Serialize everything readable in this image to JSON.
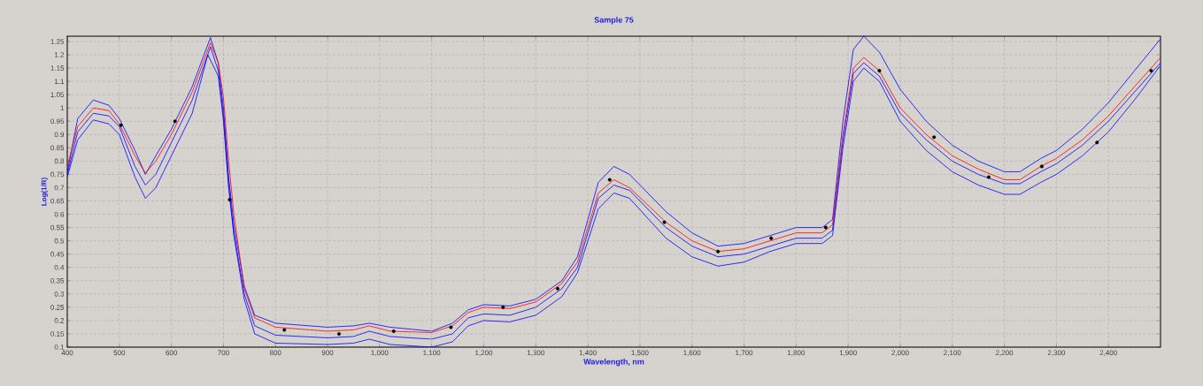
{
  "chart_data": {
    "type": "line",
    "title": "Sample 75",
    "xlabel": "Wavelength, nm",
    "ylabel": "Log(1/R)",
    "xlim": [
      400,
      2500
    ],
    "ylim": [
      0.1,
      1.27
    ],
    "xticks": [
      400,
      500,
      600,
      700,
      800,
      900,
      {
        "value": 1000,
        "label": "1,000"
      },
      {
        "value": 1100,
        "label": "1,100"
      },
      {
        "value": 1200,
        "label": "1,200"
      },
      {
        "value": 1300,
        "label": "1,300"
      },
      {
        "value": 1400,
        "label": "1,400"
      },
      {
        "value": 1500,
        "label": "1,500"
      },
      {
        "value": 1600,
        "label": "1,600"
      },
      {
        "value": 1700,
        "label": "1,700"
      },
      {
        "value": 1800,
        "label": "1,800"
      },
      {
        "value": 1900,
        "label": "1,900"
      },
      {
        "value": 2000,
        "label": "2,000"
      },
      {
        "value": 2100,
        "label": "2,100"
      },
      {
        "value": 2200,
        "label": "2,200"
      },
      {
        "value": 2300,
        "label": "2,300"
      },
      {
        "value": 2400,
        "label": "2,400"
      }
    ],
    "yticks": [
      0.1,
      0.15,
      0.2,
      0.25,
      0.3,
      0.35,
      0.4,
      0.45,
      0.5,
      0.55,
      0.6,
      0.65,
      0.7,
      0.75,
      0.8,
      0.85,
      0.9,
      0.95,
      1,
      1.05,
      1.1,
      1.15,
      1.2,
      1.25
    ],
    "grid": true,
    "marker": "none",
    "series": [
      {
        "color": "#0000ff",
        "x": [
          400,
          420,
          450,
          480,
          500,
          530,
          550,
          570,
          600,
          640,
          675,
          690,
          700,
          710,
          720,
          740,
          760,
          800,
          900,
          950,
          980,
          1020,
          1100,
          1140,
          1170,
          1200,
          1250,
          1300,
          1350,
          1380,
          1400,
          1420,
          1450,
          1480,
          1550,
          1600,
          1650,
          1700,
          1750,
          1800,
          1850,
          1870,
          1890,
          1910,
          1930,
          1960,
          2000,
          2050,
          2100,
          2150,
          2200,
          2230,
          2270,
          2300,
          2350,
          2400,
          2450,
          2500
        ],
        "values": [
          0.76,
          0.96,
          1.03,
          1.01,
          0.96,
          0.84,
          0.75,
          0.82,
          0.92,
          1.08,
          1.265,
          1.17,
          1.0,
          0.74,
          0.56,
          0.33,
          0.22,
          0.19,
          0.175,
          0.18,
          0.19,
          0.175,
          0.16,
          0.19,
          0.24,
          0.26,
          0.255,
          0.28,
          0.35,
          0.44,
          0.58,
          0.72,
          0.78,
          0.75,
          0.61,
          0.53,
          0.48,
          0.49,
          0.52,
          0.55,
          0.55,
          0.58,
          0.95,
          1.22,
          1.27,
          1.21,
          1.07,
          0.95,
          0.86,
          0.8,
          0.76,
          0.76,
          0.81,
          0.84,
          0.92,
          1.02,
          1.14,
          1.26
        ]
      },
      {
        "color": "#0000ff",
        "x": [
          400,
          420,
          450,
          480,
          500,
          530,
          550,
          570,
          600,
          640,
          675,
          690,
          700,
          710,
          720,
          740,
          760,
          800,
          900,
          950,
          980,
          1020,
          1100,
          1140,
          1170,
          1200,
          1250,
          1300,
          1350,
          1380,
          1400,
          1420,
          1450,
          1480,
          1550,
          1600,
          1650,
          1700,
          1750,
          1800,
          1850,
          1870,
          1890,
          1910,
          1930,
          1960,
          2000,
          2050,
          2100,
          2150,
          2200,
          2230,
          2270,
          2300,
          2350,
          2400,
          2450,
          2500
        ],
        "values": [
          0.75,
          0.91,
          0.98,
          0.97,
          0.93,
          0.78,
          0.71,
          0.75,
          0.87,
          1.03,
          1.23,
          1.14,
          0.97,
          0.71,
          0.53,
          0.3,
          0.18,
          0.145,
          0.135,
          0.14,
          0.16,
          0.14,
          0.13,
          0.15,
          0.21,
          0.225,
          0.22,
          0.25,
          0.32,
          0.4,
          0.53,
          0.66,
          0.71,
          0.69,
          0.55,
          0.48,
          0.44,
          0.45,
          0.48,
          0.51,
          0.51,
          0.54,
          0.88,
          1.13,
          1.17,
          1.12,
          0.98,
          0.88,
          0.8,
          0.75,
          0.715,
          0.715,
          0.76,
          0.79,
          0.86,
          0.95,
          1.06,
          1.17
        ]
      },
      {
        "color": "#0000ff",
        "x": [
          400,
          420,
          450,
          480,
          500,
          530,
          550,
          570,
          600,
          640,
          670,
          690,
          700,
          710,
          720,
          740,
          760,
          800,
          900,
          950,
          980,
          1020,
          1100,
          1140,
          1170,
          1200,
          1250,
          1300,
          1350,
          1380,
          1400,
          1420,
          1450,
          1480,
          1550,
          1600,
          1650,
          1700,
          1750,
          1800,
          1850,
          1870,
          1890,
          1910,
          1930,
          1960,
          2000,
          2050,
          2100,
          2150,
          2200,
          2230,
          2270,
          2300,
          2350,
          2400,
          2450,
          2500
        ],
        "values": [
          0.74,
          0.88,
          0.955,
          0.94,
          0.9,
          0.74,
          0.66,
          0.7,
          0.82,
          0.98,
          1.2,
          1.12,
          0.95,
          0.7,
          0.52,
          0.28,
          0.15,
          0.115,
          0.11,
          0.115,
          0.13,
          0.11,
          0.1,
          0.12,
          0.18,
          0.2,
          0.195,
          0.22,
          0.29,
          0.38,
          0.5,
          0.62,
          0.68,
          0.66,
          0.51,
          0.44,
          0.405,
          0.42,
          0.46,
          0.49,
          0.49,
          0.52,
          0.85,
          1.1,
          1.15,
          1.1,
          0.95,
          0.84,
          0.76,
          0.71,
          0.675,
          0.675,
          0.72,
          0.75,
          0.82,
          0.91,
          1.03,
          1.16
        ]
      },
      {
        "color": "#ff0000",
        "x": [
          400,
          420,
          450,
          480,
          500,
          530,
          550,
          570,
          600,
          640,
          675,
          690,
          700,
          710,
          720,
          740,
          760,
          800,
          900,
          950,
          980,
          1020,
          1100,
          1140,
          1170,
          1200,
          1250,
          1300,
          1350,
          1380,
          1400,
          1420,
          1450,
          1480,
          1550,
          1600,
          1650,
          1700,
          1750,
          1800,
          1850,
          1870,
          1890,
          1910,
          1930,
          1960,
          2000,
          2050,
          2100,
          2150,
          2200,
          2230,
          2270,
          2300,
          2350,
          2400,
          2450,
          2500
        ],
        "values": [
          0.78,
          0.93,
          1.0,
          0.99,
          0.94,
          0.82,
          0.755,
          0.8,
          0.9,
          1.06,
          1.245,
          1.17,
          1.04,
          0.8,
          0.6,
          0.32,
          0.21,
          0.175,
          0.16,
          0.165,
          0.18,
          0.16,
          0.155,
          0.18,
          0.23,
          0.25,
          0.245,
          0.27,
          0.34,
          0.42,
          0.55,
          0.68,
          0.73,
          0.7,
          0.57,
          0.5,
          0.46,
          0.47,
          0.5,
          0.53,
          0.53,
          0.56,
          0.9,
          1.15,
          1.19,
          1.14,
          1.0,
          0.9,
          0.82,
          0.77,
          0.73,
          0.73,
          0.78,
          0.81,
          0.88,
          0.97,
          1.08,
          1.19
        ]
      },
      {
        "type": "scatter",
        "color": "#000000",
        "x": [
          503,
          607,
          712,
          817,
          922,
          1027,
          1137,
          1237,
          1342,
          1442,
          1547,
          1650,
          1752,
          1857,
          1960,
          2065,
          2170,
          2272,
          2378,
          2482
        ],
        "values": [
          0.935,
          0.95,
          0.655,
          0.165,
          0.15,
          0.16,
          0.175,
          0.25,
          0.32,
          0.73,
          0.57,
          0.46,
          0.51,
          0.55,
          1.14,
          0.89,
          0.74,
          0.78,
          0.87,
          1.14
        ]
      }
    ]
  }
}
